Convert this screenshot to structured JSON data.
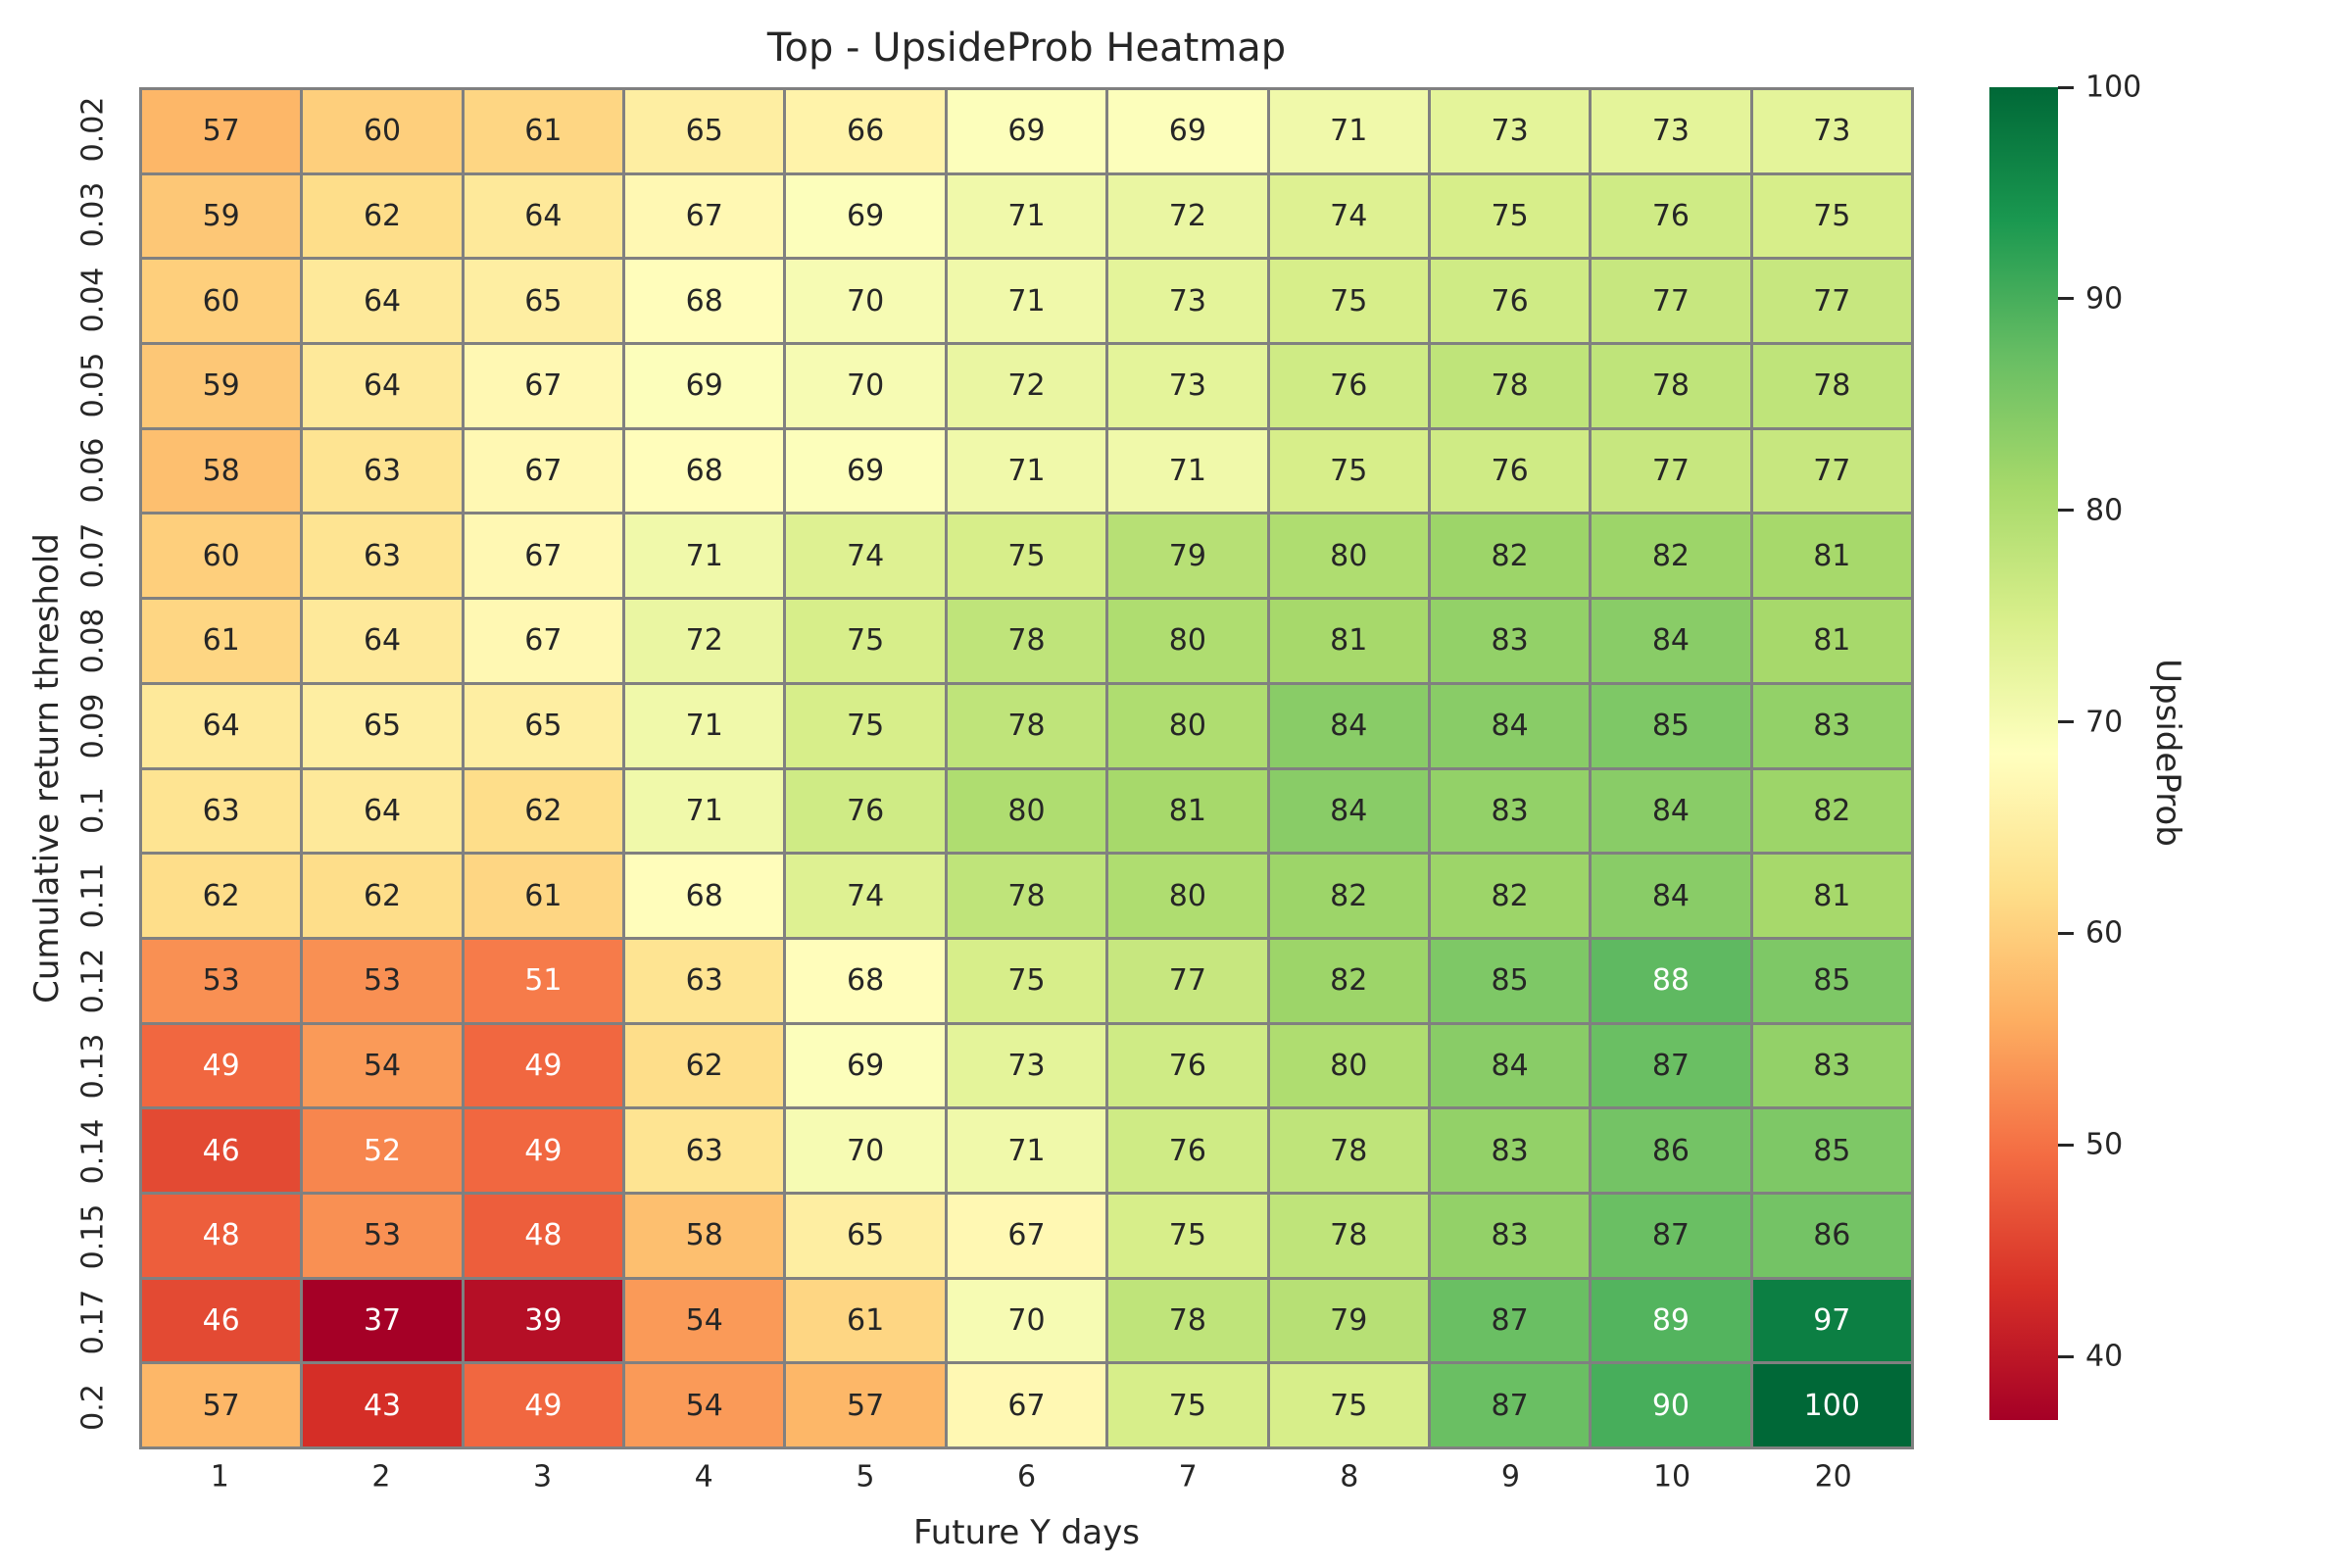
{
  "chart_data": {
    "type": "heatmap",
    "title": "Top - UpsideProb Heatmap",
    "xlabel": "Future Y days",
    "ylabel": "Cumulative return threshold",
    "colorbar_label": "UpsideProb",
    "x_categories": [
      "1",
      "2",
      "3",
      "4",
      "5",
      "6",
      "7",
      "8",
      "9",
      "10",
      "20"
    ],
    "y_categories": [
      "0.02",
      "0.03",
      "0.04",
      "0.05",
      "0.06",
      "0.07",
      "0.08",
      "0.09",
      "0.1",
      "0.11",
      "0.12",
      "0.13",
      "0.14",
      "0.15",
      "0.17",
      "0.2"
    ],
    "values": [
      [
        57,
        60,
        61,
        65,
        66,
        69,
        69,
        71,
        73,
        73,
        73
      ],
      [
        59,
        62,
        64,
        67,
        69,
        71,
        72,
        74,
        75,
        76,
        75
      ],
      [
        60,
        64,
        65,
        68,
        70,
        71,
        73,
        75,
        76,
        77,
        77
      ],
      [
        59,
        64,
        67,
        69,
        70,
        72,
        73,
        76,
        78,
        78,
        78
      ],
      [
        58,
        63,
        67,
        68,
        69,
        71,
        71,
        75,
        76,
        77,
        77
      ],
      [
        60,
        63,
        67,
        71,
        74,
        75,
        79,
        80,
        82,
        82,
        81
      ],
      [
        61,
        64,
        67,
        72,
        75,
        78,
        80,
        81,
        83,
        84,
        81
      ],
      [
        64,
        65,
        65,
        71,
        75,
        78,
        80,
        84,
        84,
        85,
        83
      ],
      [
        63,
        64,
        62,
        71,
        76,
        80,
        81,
        84,
        83,
        84,
        82
      ],
      [
        62,
        62,
        61,
        68,
        74,
        78,
        80,
        82,
        82,
        84,
        81
      ],
      [
        53,
        53,
        51,
        63,
        68,
        75,
        77,
        82,
        85,
        88,
        85
      ],
      [
        49,
        54,
        49,
        62,
        69,
        73,
        76,
        80,
        84,
        87,
        83
      ],
      [
        46,
        52,
        49,
        63,
        70,
        71,
        76,
        78,
        83,
        86,
        85
      ],
      [
        48,
        53,
        48,
        58,
        65,
        67,
        75,
        78,
        83,
        87,
        86
      ],
      [
        46,
        37,
        39,
        54,
        61,
        70,
        78,
        79,
        87,
        89,
        97
      ],
      [
        57,
        43,
        49,
        54,
        57,
        67,
        75,
        75,
        87,
        90,
        100
      ]
    ],
    "vmin": 37,
    "vmax": 100,
    "colorbar_ticks": [
      100,
      90,
      80,
      70,
      60,
      50,
      40
    ],
    "colormap_name": "RdYlGn",
    "colormap_stops": [
      "#a50026",
      "#d73027",
      "#f46d43",
      "#fdae61",
      "#fee08b",
      "#ffffbf",
      "#d9ef8b",
      "#a6d96a",
      "#66bd63",
      "#1a9850",
      "#006837"
    ],
    "grid": false,
    "legend_position": "right",
    "gridline_color": "#808080",
    "text_color_dark": "#262626",
    "text_color_light": "#ffffff"
  }
}
